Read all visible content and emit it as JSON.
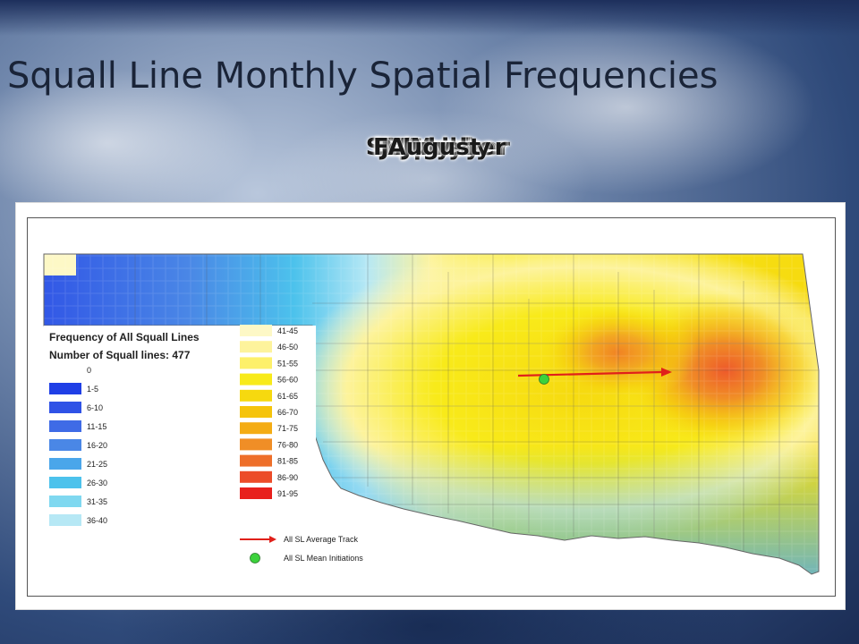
{
  "slide": {
    "title": "Squall Line Monthly Spatial Frequencies",
    "overlapping_labels": [
      "September",
      "October",
      "November",
      "December",
      "January",
      "February",
      "March",
      "April",
      "May",
      "June",
      "July",
      "August"
    ]
  },
  "chart_data": {
    "type": "heatmap",
    "legend": {
      "title": "Frequency of All Squall Lines",
      "subtitle_label": "Number of Squall lines:",
      "subtitle_value": "477",
      "bins_left": [
        {
          "label": "0",
          "color": "#ffffff"
        },
        {
          "label": "1-5",
          "color": "#1f3fe6"
        },
        {
          "label": "6-10",
          "color": "#2f52e6"
        },
        {
          "label": "11-15",
          "color": "#3f6be6"
        },
        {
          "label": "16-20",
          "color": "#4a87e6"
        },
        {
          "label": "21-25",
          "color": "#4aa6ea"
        },
        {
          "label": "26-30",
          "color": "#4cc2ec"
        },
        {
          "label": "31-35",
          "color": "#7fd8f0"
        },
        {
          "label": "36-40",
          "color": "#b6e8f5"
        }
      ],
      "bins_right": [
        {
          "label": "41-45",
          "color": "#fdf8c6"
        },
        {
          "label": "46-50",
          "color": "#fdf39c"
        },
        {
          "label": "51-55",
          "color": "#fdf06a"
        },
        {
          "label": "56-60",
          "color": "#f8ea1a"
        },
        {
          "label": "61-65",
          "color": "#f6d90f"
        },
        {
          "label": "66-70",
          "color": "#f5c40c"
        },
        {
          "label": "71-75",
          "color": "#f4ac14"
        },
        {
          "label": "76-80",
          "color": "#f08e26"
        },
        {
          "label": "81-85",
          "color": "#ee6f2a"
        },
        {
          "label": "86-90",
          "color": "#ec4c29"
        },
        {
          "label": "91-95",
          "color": "#e8201c"
        }
      ],
      "track_label": "All SL Average Track",
      "initiation_label": "All SL Mean Initiations",
      "track_color": "#e0201a",
      "initiation_color": "#3cd23c"
    }
  }
}
